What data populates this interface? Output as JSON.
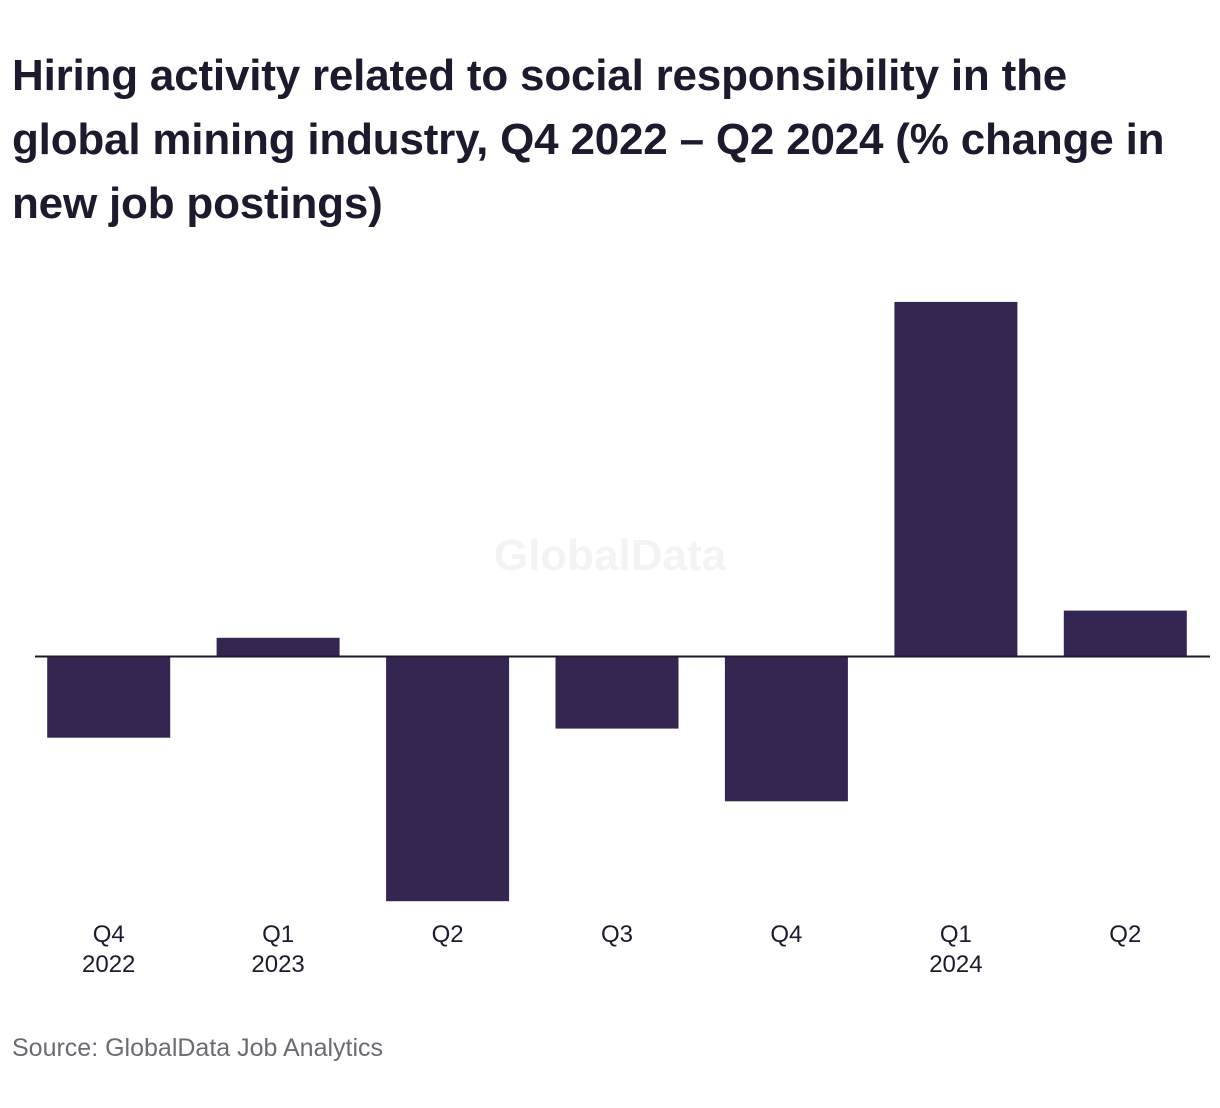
{
  "chart_data": {
    "type": "bar",
    "title": "Hiring activity related to social responsibility in the global mining industry, Q4 2022 – Q2 2024 (% change in new job postings)",
    "categories": [
      {
        "quarter": "Q4",
        "year": "2022"
      },
      {
        "quarter": "Q1",
        "year": "2023"
      },
      {
        "quarter": "Q2",
        "year": ""
      },
      {
        "quarter": "Q3",
        "year": ""
      },
      {
        "quarter": "Q4",
        "year": ""
      },
      {
        "quarter": "Q1",
        "year": "2024"
      },
      {
        "quarter": "Q2",
        "year": ""
      }
    ],
    "values": [
      -9,
      2,
      -27,
      -8,
      -16,
      39,
      5
    ],
    "ylim": [
      -27,
      39
    ],
    "xlabel": "",
    "ylabel": "",
    "bar_color": "#352551",
    "axis_color": "#1c1b2e",
    "grid": false,
    "legend": "none"
  },
  "watermark": "GlobalData",
  "source": "Source: GlobalData Job Analytics"
}
